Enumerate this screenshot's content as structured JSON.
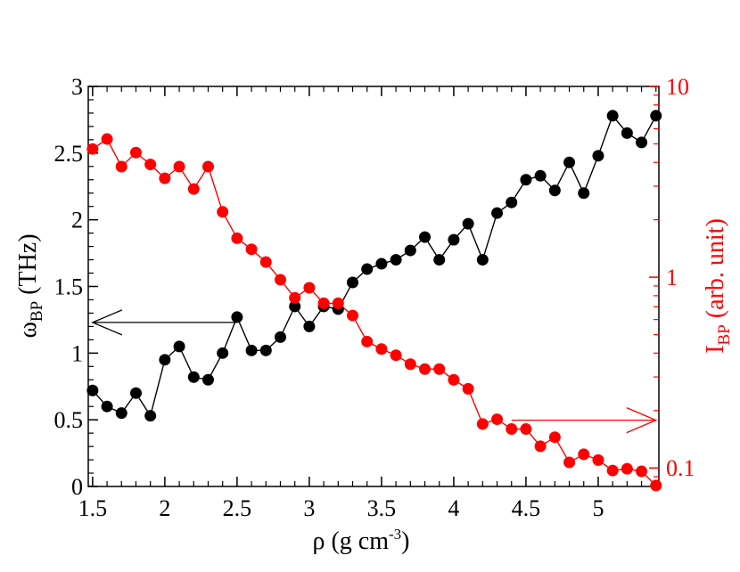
{
  "chart_data": {
    "type": "line",
    "title": "",
    "xlabel": {
      "prefix": "ρ (g cm",
      "sup": "-3",
      "suffix": ")"
    },
    "ylabel_left": {
      "main": "ω",
      "sub": "BP",
      "suffix": " (THz)"
    },
    "ylabel_right": {
      "main": "I",
      "sub": "BP",
      "suffix": " (arb. unit)"
    },
    "xlim": [
      1.47,
      5.42
    ],
    "ylim_left": [
      0,
      3
    ],
    "ylim_right_log": [
      0.08,
      10
    ],
    "xticks": [
      1.5,
      2,
      2.5,
      3,
      3.5,
      4,
      4.5,
      5
    ],
    "xtick_labels": [
      "1.5",
      "2",
      "2.5",
      "3",
      "3.5",
      "4",
      "4.5",
      "5"
    ],
    "yticks_left": [
      0,
      0.5,
      1,
      1.5,
      2,
      2.5,
      3
    ],
    "ytick_labels_left": [
      "0",
      "0.5",
      "1",
      "1.5",
      "2",
      "2.5",
      "3"
    ],
    "yticks_right": [
      0.1,
      1,
      10
    ],
    "ytick_labels_right": [
      "0.1",
      "1",
      "10"
    ],
    "colors": {
      "left": "#000000",
      "right": "#ff0000"
    },
    "series": [
      {
        "name": "ω_BP",
        "axis": "left",
        "color": "#000000",
        "x": [
          1.5,
          1.6,
          1.7,
          1.8,
          1.9,
          2.0,
          2.1,
          2.2,
          2.3,
          2.4,
          2.5,
          2.6,
          2.7,
          2.8,
          2.9,
          3.0,
          3.1,
          3.2,
          3.3,
          3.4,
          3.5,
          3.6,
          3.7,
          3.8,
          3.9,
          4.0,
          4.1,
          4.2,
          4.3,
          4.4,
          4.5,
          4.6,
          4.7,
          4.8,
          4.9,
          5.0,
          5.1,
          5.2,
          5.3,
          5.4
        ],
        "values": [
          0.72,
          0.6,
          0.55,
          0.7,
          0.53,
          0.95,
          1.05,
          0.82,
          0.8,
          1.0,
          1.27,
          1.02,
          1.02,
          1.12,
          1.35,
          1.2,
          1.35,
          1.33,
          1.53,
          1.63,
          1.67,
          1.7,
          1.77,
          1.87,
          1.7,
          1.85,
          1.97,
          1.7,
          2.05,
          2.13,
          2.3,
          2.33,
          2.22,
          2.43,
          2.2,
          2.48,
          2.78,
          2.65,
          2.58,
          2.78
        ]
      },
      {
        "name": "I_BP",
        "axis": "right",
        "color": "#ff0000",
        "x": [
          1.5,
          1.6,
          1.7,
          1.8,
          1.9,
          2.0,
          2.1,
          2.2,
          2.3,
          2.4,
          2.5,
          2.6,
          2.7,
          2.8,
          2.9,
          3.0,
          3.1,
          3.2,
          3.3,
          3.4,
          3.5,
          3.6,
          3.7,
          3.8,
          3.9,
          4.0,
          4.1,
          4.2,
          4.3,
          4.4,
          4.5,
          4.6,
          4.7,
          4.8,
          4.9,
          5.0,
          5.1,
          5.2,
          5.3,
          5.4
        ],
        "values": [
          4.7,
          5.3,
          3.8,
          4.5,
          3.9,
          3.3,
          3.8,
          2.9,
          3.8,
          2.2,
          1.6,
          1.4,
          1.2,
          0.97,
          0.78,
          0.88,
          0.73,
          0.73,
          0.63,
          0.46,
          0.42,
          0.39,
          0.35,
          0.33,
          0.33,
          0.29,
          0.26,
          0.17,
          0.18,
          0.16,
          0.16,
          0.13,
          0.145,
          0.107,
          0.118,
          0.11,
          0.097,
          0.099,
          0.096,
          0.081
        ]
      }
    ],
    "annotations": [
      {
        "type": "arrow",
        "points_to": "left-axis",
        "color": "#000000",
        "from": [
          2.5,
          1.23
        ],
        "to": [
          1.5,
          1.23
        ]
      },
      {
        "type": "arrow",
        "points_to": "right-axis",
        "color": "#ff0000",
        "from": [
          4.4,
          0.178
        ],
        "to": [
          5.4,
          0.178
        ]
      }
    ]
  }
}
